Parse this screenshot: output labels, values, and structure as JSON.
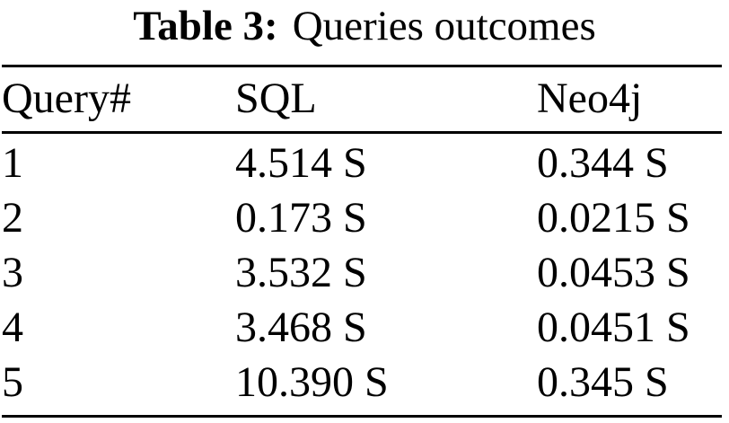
{
  "caption": {
    "label": "Table 3:",
    "text": "Queries outcomes"
  },
  "table": {
    "columns": [
      "Query#",
      "SQL",
      "Neo4j"
    ],
    "rows": [
      {
        "query": "1",
        "sql": "4.514 S",
        "neo4j": "0.344 S"
      },
      {
        "query": "2",
        "sql": "0.173 S",
        "neo4j": "0.0215 S"
      },
      {
        "query": "3",
        "sql": "3.532 S",
        "neo4j": "0.0453 S"
      },
      {
        "query": "4",
        "sql": "3.468 S",
        "neo4j": "0.0451 S"
      },
      {
        "query": "5",
        "sql": "10.390 S",
        "neo4j": "0.345 S"
      }
    ]
  },
  "chart_data": {
    "type": "table",
    "title": "Table 3: Queries outcomes",
    "categories": [
      "Query 1",
      "Query 2",
      "Query 3",
      "Query 4",
      "Query 5"
    ],
    "series": [
      {
        "name": "SQL (seconds)",
        "values": [
          4.514,
          0.173,
          3.532,
          3.468,
          10.39
        ]
      },
      {
        "name": "Neo4j (seconds)",
        "values": [
          0.344,
          0.0215,
          0.0453,
          0.0451,
          0.345
        ]
      }
    ]
  },
  "colors": {
    "background": "#ffffff",
    "text": "#000000",
    "rule": "#000000"
  }
}
